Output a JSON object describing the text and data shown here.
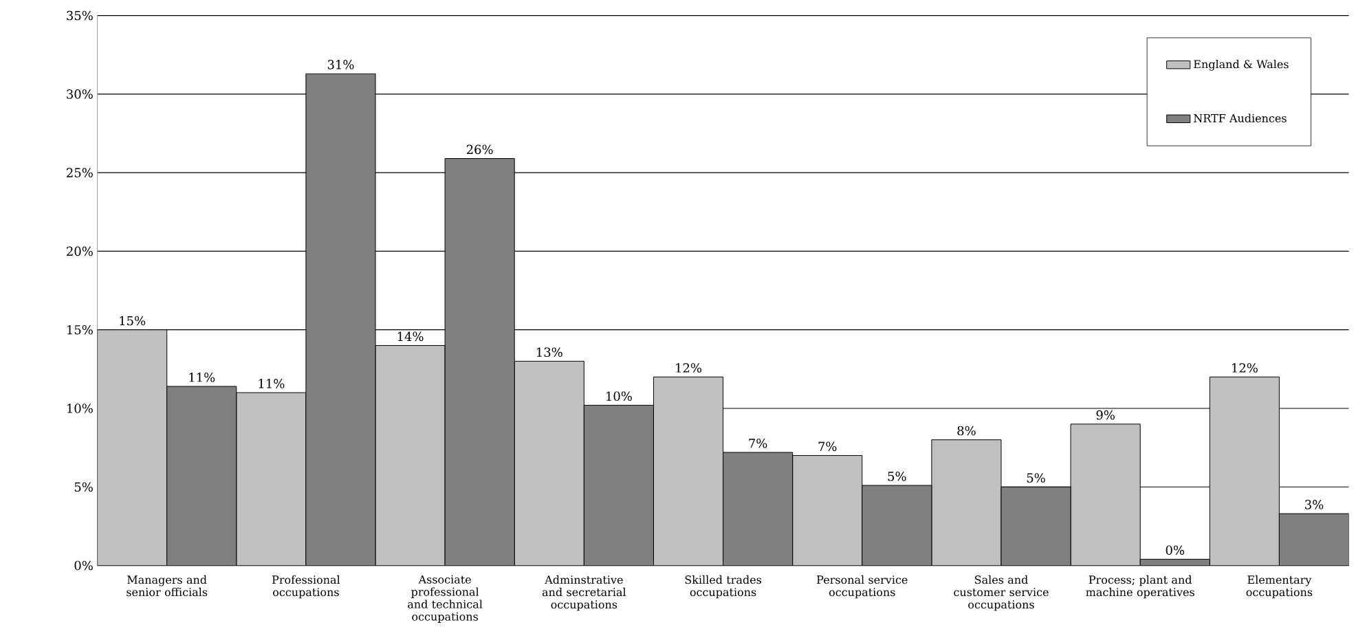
{
  "chart_data": {
    "type": "bar",
    "categories": [
      "Managers and senior officials",
      "Professional occupations",
      "Associate professional and technical occupations",
      "Adminstrative and secretarial occupations",
      "Skilled trades occupations",
      "Personal service occupations",
      "Sales and customer service occupations",
      "Process; plant and machine operatives",
      "Elementary occupations"
    ],
    "series": [
      {
        "name": "England & Wales",
        "color": "#c0c0c0",
        "values": [
          15,
          11,
          14,
          13,
          12,
          7,
          8,
          9,
          12
        ],
        "value_labels": [
          "15%",
          "11%",
          "14%",
          "13%",
          "12%",
          "7%",
          "8%",
          "9%",
          "12%"
        ]
      },
      {
        "name": "NRTF Audiences",
        "color": "#808080",
        "values": [
          11.4,
          31.3,
          25.9,
          10.2,
          7.2,
          5.1,
          5.0,
          0.4,
          3.3
        ],
        "value_labels": [
          "11%",
          "31%",
          "26%",
          "10%",
          "7%",
          "5%",
          "5%",
          "0%",
          "3%"
        ]
      }
    ],
    "ylim": [
      0,
      35
    ],
    "yticks": [
      {
        "value": 0,
        "label": "0%"
      },
      {
        "value": 5,
        "label": "5%"
      },
      {
        "value": 10,
        "label": "10%"
      },
      {
        "value": 15,
        "label": "15%"
      },
      {
        "value": 20,
        "label": "20%"
      },
      {
        "value": 25,
        "label": "25%"
      },
      {
        "value": 30,
        "label": "30%"
      },
      {
        "value": 35,
        "label": "35%"
      }
    ],
    "grid": "y",
    "legend": "top right"
  }
}
